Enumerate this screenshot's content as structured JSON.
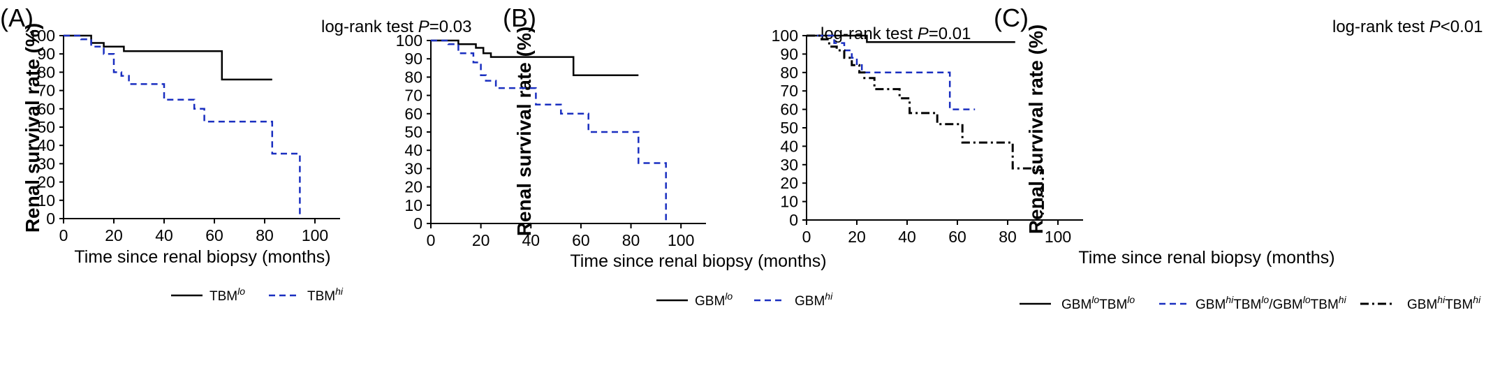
{
  "chart_data": [
    {
      "type": "line",
      "panel_label": "(A)",
      "test_label": "log-rank test",
      "p_symbol": "P",
      "p_value": "=0.03",
      "xlabel": "Time since renal biopsy (months)",
      "ylabel": "Renal survival rate (%)",
      "xlim": [
        0,
        110
      ],
      "ylim": [
        0,
        100
      ],
      "x_ticks": [
        "0",
        "20",
        "40",
        "60",
        "80",
        "100"
      ],
      "y_ticks": [
        "0",
        "10",
        "20",
        "30",
        "40",
        "50",
        "60",
        "70",
        "80",
        "90",
        "100"
      ],
      "series": [
        {
          "name": "TBM",
          "name_sup": "lo",
          "color": "#000000",
          "style": "solid",
          "x": [
            0,
            11,
            11,
            16,
            16,
            24,
            24,
            63,
            63,
            83
          ],
          "y": [
            100,
            100,
            96,
            96,
            94,
            94,
            91.5,
            91.5,
            76,
            76
          ]
        },
        {
          "name": "TBM",
          "name_sup": "hi",
          "color": "#1a2fc0",
          "style": "dashed",
          "x": [
            0,
            7,
            7,
            11,
            11,
            16,
            16,
            20,
            20,
            23,
            23,
            26,
            26,
            40,
            40,
            47,
            47,
            52,
            52,
            56,
            56,
            83,
            83,
            88,
            88,
            94,
            94
          ],
          "y": [
            100,
            100,
            98,
            98,
            94,
            94,
            90,
            90,
            80,
            80,
            78,
            78,
            73.5,
            73.5,
            65,
            65,
            65,
            65,
            60,
            60,
            53,
            53,
            35.5,
            35.5,
            35.5,
            35.5,
            0
          ]
        }
      ]
    },
    {
      "type": "line",
      "panel_label": "(B)",
      "test_label": "log-rank test",
      "p_symbol": "P",
      "p_value": "=0.01",
      "xlabel": "Time since renal biopsy (months)",
      "ylabel": "Renal survival rate (%)",
      "xlim": [
        0,
        110
      ],
      "ylim": [
        0,
        100
      ],
      "x_ticks": [
        "0",
        "20",
        "40",
        "60",
        "80",
        "100"
      ],
      "y_ticks": [
        "0",
        "10",
        "20",
        "30",
        "40",
        "50",
        "60",
        "70",
        "80",
        "90",
        "100"
      ],
      "series": [
        {
          "name": "GBM",
          "name_sup": "lo",
          "color": "#000000",
          "style": "solid",
          "x": [
            0,
            11,
            11,
            18,
            18,
            21,
            21,
            24,
            24,
            57,
            57,
            83
          ],
          "y": [
            100,
            100,
            98,
            98,
            96,
            96,
            93,
            93,
            91,
            91,
            81,
            81
          ]
        },
        {
          "name": "GBM",
          "name_sup": "hi",
          "color": "#1a2fc0",
          "style": "dashed",
          "x": [
            0,
            7,
            7,
            11,
            11,
            17,
            17,
            20,
            20,
            22,
            22,
            26,
            26,
            42,
            42,
            52,
            52,
            63,
            63,
            83,
            83,
            94,
            94
          ],
          "y": [
            100,
            100,
            98,
            98,
            93,
            93,
            88,
            88,
            81,
            81,
            78,
            78,
            74,
            74,
            65,
            65,
            60,
            60,
            50,
            50,
            33,
            33,
            0
          ]
        }
      ]
    },
    {
      "type": "line",
      "panel_label": "(C)",
      "test_label": "log-rank test",
      "p_symbol": "P",
      "p_value": "<0.01",
      "xlabel": "Time since renal biopsy (months)",
      "ylabel": "Renal survival rate (%)",
      "xlim": [
        0,
        110
      ],
      "ylim": [
        0,
        100
      ],
      "x_ticks": [
        "0",
        "20",
        "40",
        "60",
        "80",
        "100"
      ],
      "y_ticks": [
        "0",
        "10",
        "20",
        "30",
        "40",
        "50",
        "60",
        "70",
        "80",
        "90",
        "100"
      ],
      "series": [
        {
          "name": "GBM",
          "name_sup": "lo",
          "name2": "TBM",
          "name2_sup": "lo",
          "color": "#000000",
          "style": "solid",
          "x": [
            0,
            24,
            24,
            83
          ],
          "y": [
            100,
            100,
            96.5,
            96.5
          ]
        },
        {
          "name": "GBM",
          "name_sup": "hi",
          "name2": "TBM",
          "name2_sup": "lo",
          "extra": "/GBM",
          "extra_sup": "lo",
          "extra2": "TBM",
          "extra2_sup": "hi",
          "color": "#1a2fc0",
          "style": "dashed",
          "x": [
            0,
            11,
            11,
            15,
            15,
            18,
            18,
            20,
            20,
            22,
            22,
            57,
            57,
            67
          ],
          "y": [
            100,
            100,
            96,
            96,
            92,
            92,
            88,
            88,
            84,
            84,
            80,
            80,
            60,
            60
          ]
        },
        {
          "name": "GBM",
          "name_sup": "hi",
          "name2": "TBM",
          "name2_sup": "hi",
          "color": "#000000",
          "style": "dashdot",
          "x": [
            0,
            6,
            6,
            9,
            9,
            12,
            12,
            15,
            15,
            18,
            18,
            21,
            21,
            23,
            23,
            27,
            27,
            37,
            37,
            41,
            41,
            52,
            52,
            58,
            58,
            62,
            62,
            78,
            78,
            82,
            82,
            89,
            89,
            94,
            94
          ],
          "y": [
            100,
            100,
            98,
            98,
            94,
            94,
            92,
            92,
            88,
            88,
            84,
            84,
            80,
            80,
            77,
            77,
            71,
            71,
            66,
            66,
            58,
            58,
            52,
            52,
            52,
            52,
            42,
            42,
            42,
            42,
            28,
            28,
            27,
            27,
            3
          ]
        }
      ]
    }
  ]
}
